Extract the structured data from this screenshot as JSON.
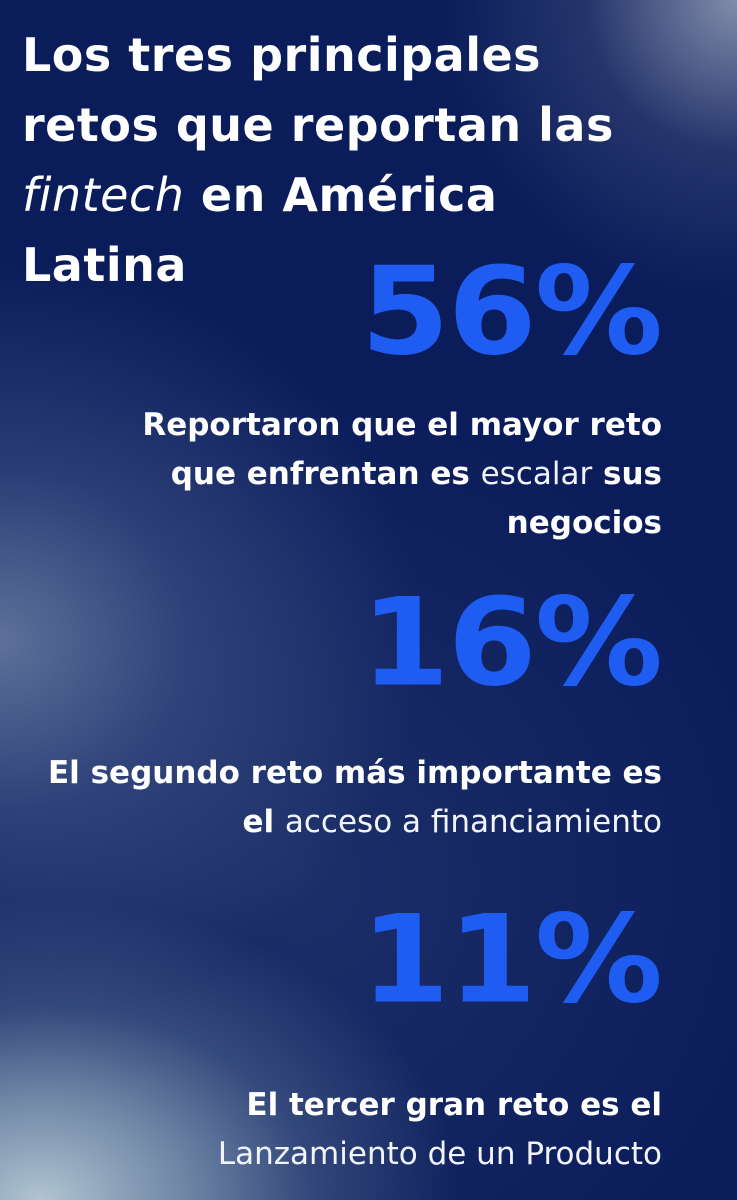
{
  "title": {
    "line1": "Los tres principales",
    "line2": "retos que reportan las",
    "italic_word": "fintech",
    "line3_rest": " en América",
    "line4": "Latina"
  },
  "stats": [
    {
      "value": "56%",
      "desc": {
        "part1": "Reportaron que el mayor reto que enfrentan es ",
        "highlight": "escalar",
        "part2": " sus negocios"
      }
    },
    {
      "value": "16%",
      "desc": {
        "part1": "El segundo reto  más importante es el ",
        "highlight": "acceso a financiamiento",
        "part2": ""
      }
    },
    {
      "value": "11%",
      "desc": {
        "part1": "El tercer gran reto es el ",
        "highlight": "Lanzamiento de un Producto",
        "part2": ""
      }
    }
  ],
  "colors": {
    "background": "#0a1c5a",
    "accent_blue": "#1e5cf2",
    "text": "#ffffff"
  }
}
